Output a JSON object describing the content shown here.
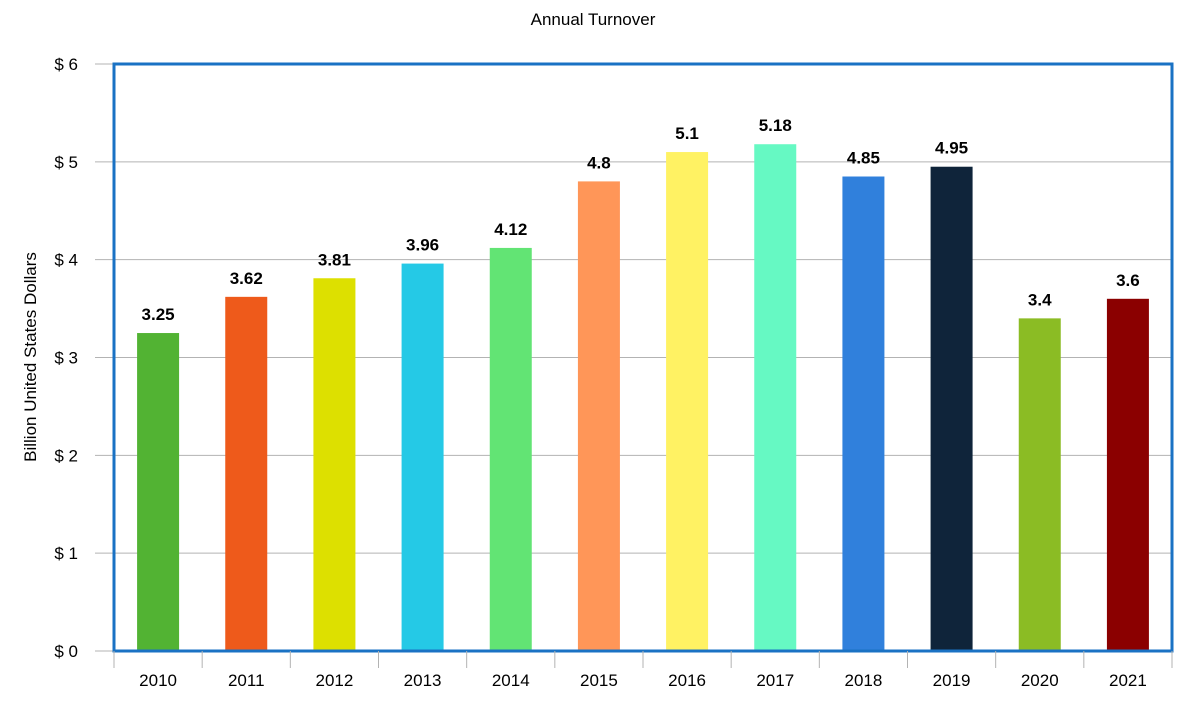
{
  "chart_data": {
    "type": "bar",
    "title": "Annual Turnover",
    "xlabel": "",
    "ylabel": "Billion United States Dollars",
    "ylim": [
      0,
      6
    ],
    "yticks": [
      0,
      1,
      2,
      3,
      4,
      5,
      6
    ],
    "ytick_labels": [
      "$ 0",
      "$ 1",
      "$ 2",
      "$ 3",
      "$ 4",
      "$ 5",
      "$ 6"
    ],
    "grid": true,
    "legend": "none",
    "categories": [
      "2010",
      "2011",
      "2012",
      "2013",
      "2014",
      "2015",
      "2016",
      "2017",
      "2018",
      "2019",
      "2020",
      "2021"
    ],
    "values": [
      3.25,
      3.62,
      3.81,
      3.96,
      4.12,
      4.8,
      5.1,
      5.18,
      4.85,
      4.95,
      3.4,
      3.6
    ],
    "data_labels": [
      "3.25",
      "3.62",
      "3.81",
      "3.96",
      "4.12",
      "4.8",
      "5.1",
      "5.18",
      "4.85",
      "4.95",
      "3.4",
      "3.6"
    ],
    "colors": [
      "#52b333",
      "#ee5a1b",
      "#dde000",
      "#25c9e6",
      "#62e474",
      "#ff9658",
      "#fff263",
      "#66f9c3",
      "#3080dc",
      "#0f243a",
      "#8bbc24",
      "#8b0000"
    ],
    "frame_color": "#1a72c4"
  }
}
